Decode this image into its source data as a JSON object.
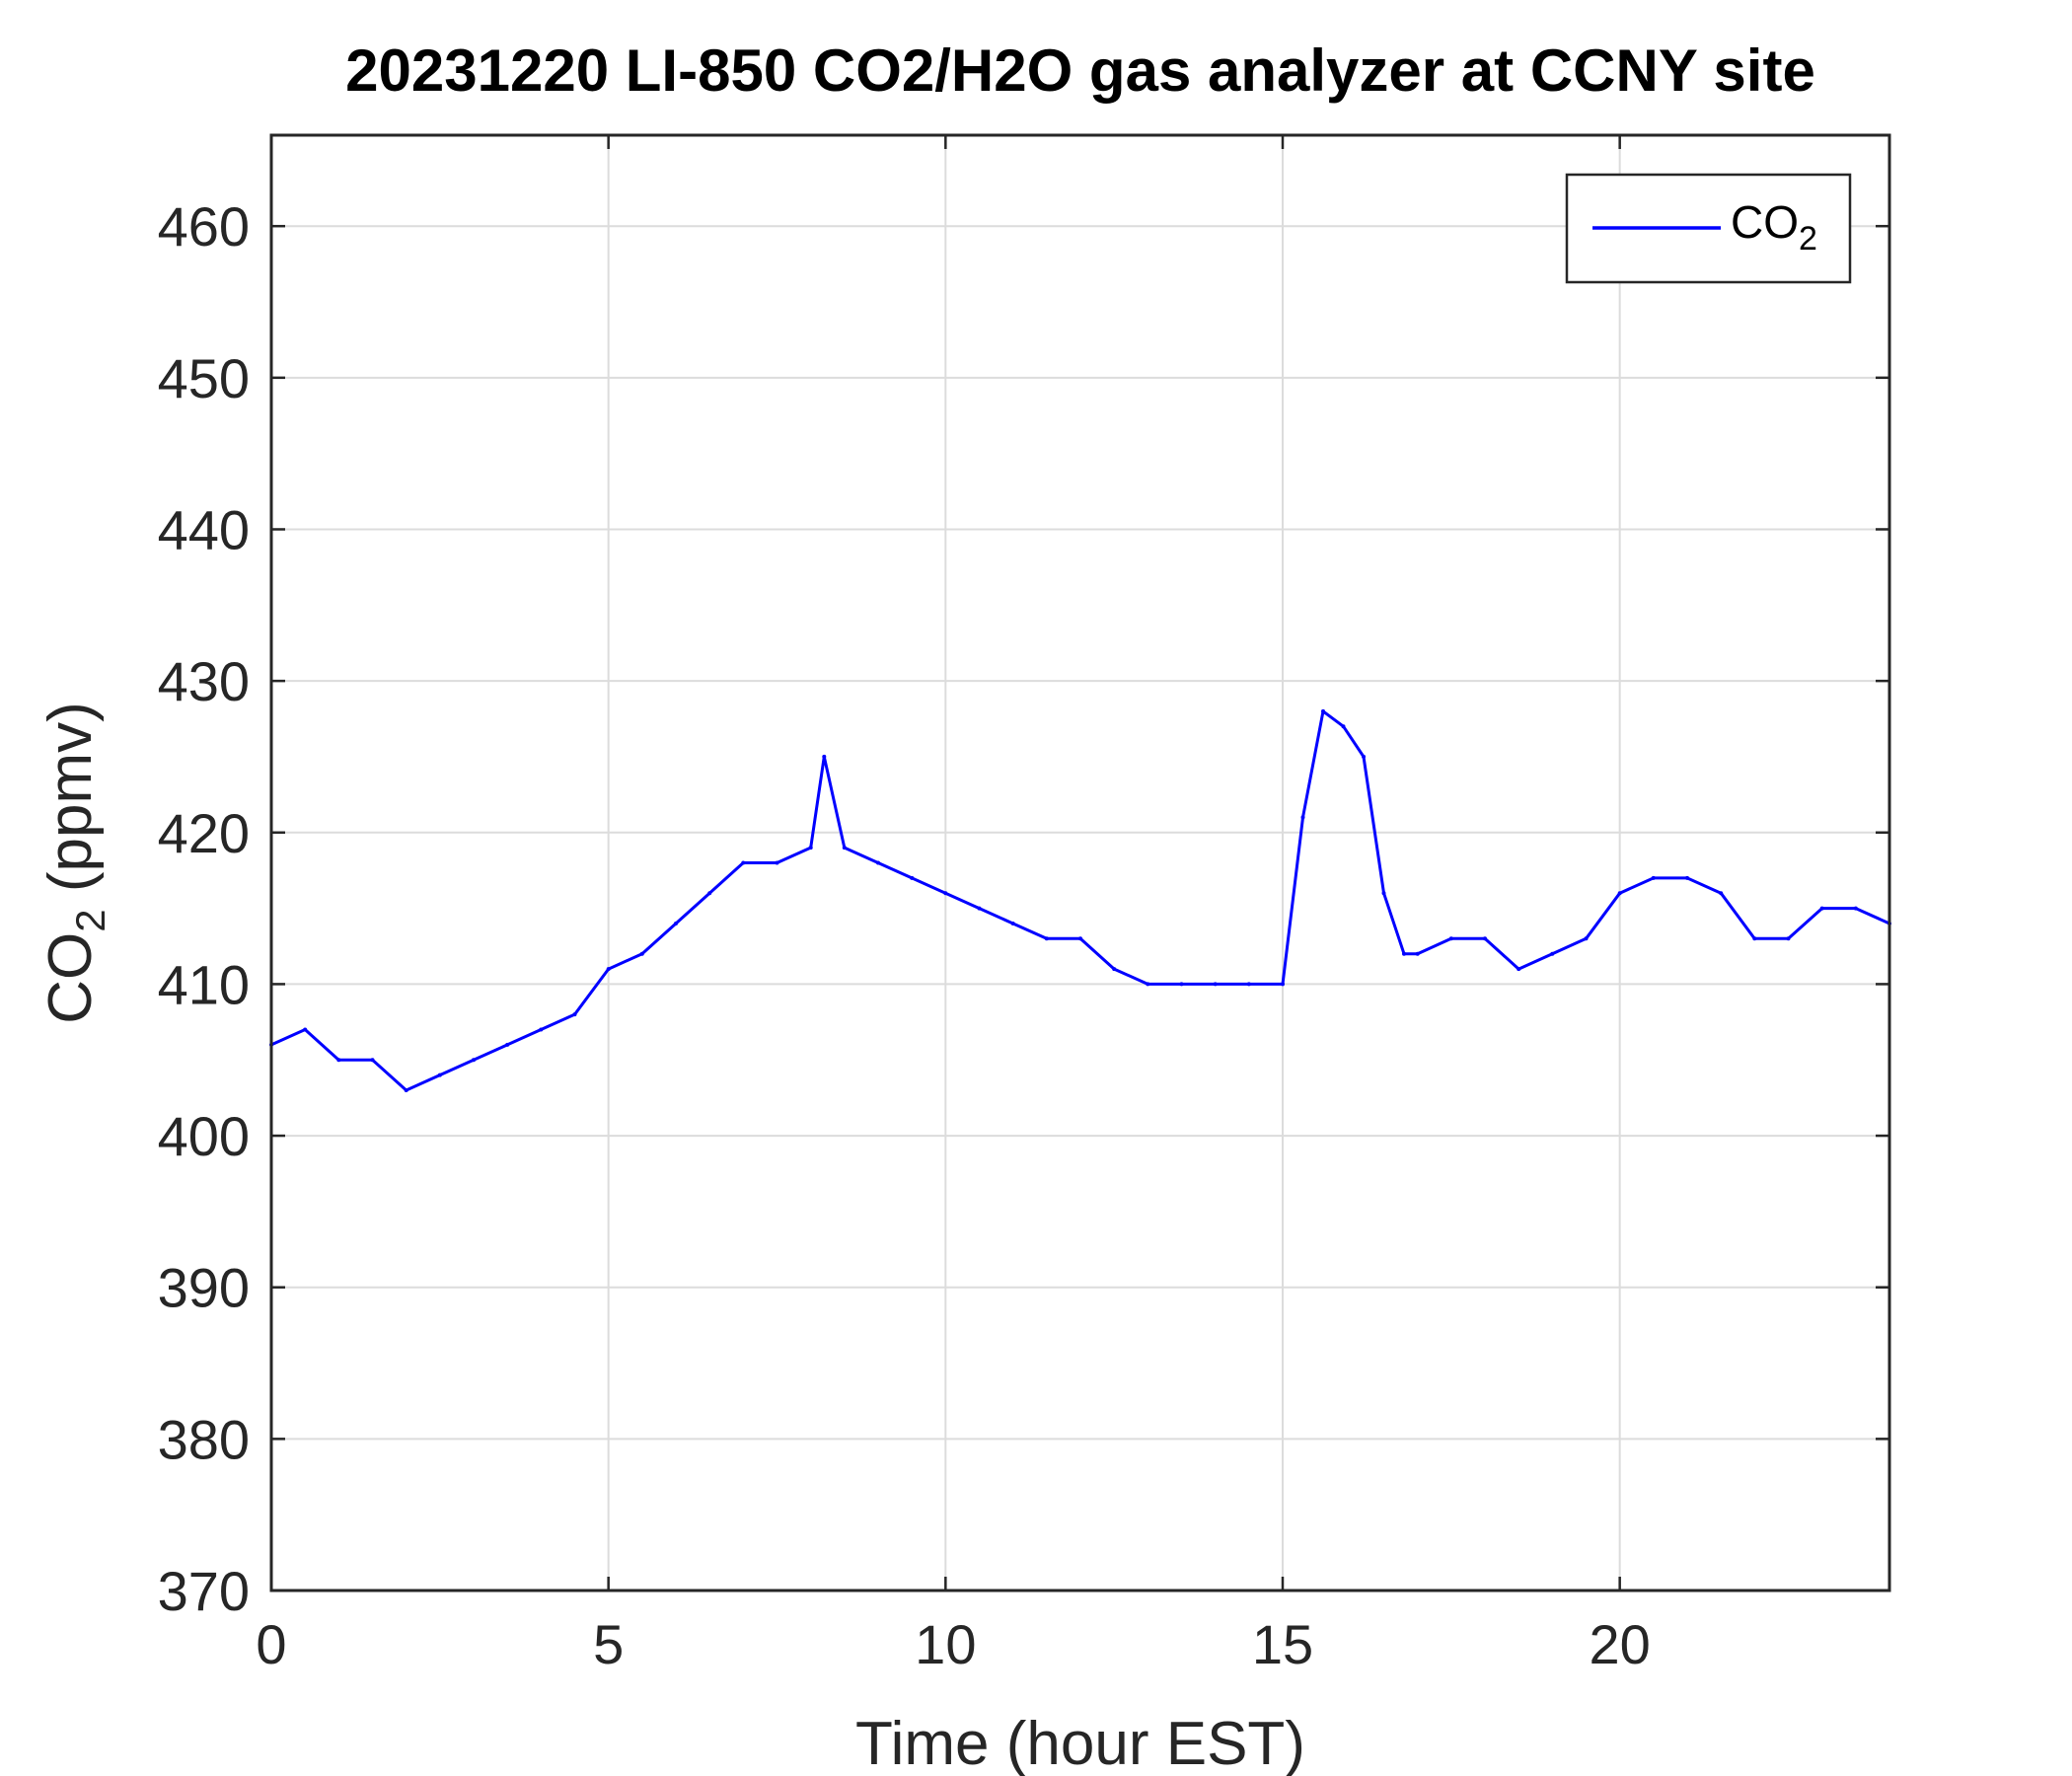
{
  "chart_data": {
    "type": "line",
    "title": "20231220 LI-850 CO2/H2O gas analyzer at CCNY site",
    "xlabel": "Time (hour EST)",
    "ylabel": {
      "main": "CO",
      "sub": "2",
      "rest": " (ppmv)"
    },
    "xlim": [
      0,
      24
    ],
    "ylim": [
      370,
      466
    ],
    "xticks": [
      0,
      5,
      10,
      15,
      20
    ],
    "yticks": [
      370,
      380,
      390,
      400,
      410,
      420,
      430,
      440,
      450,
      460
    ],
    "grid": true,
    "legend_position": "top-right",
    "series": [
      {
        "name": {
          "main": "CO",
          "sub": "2"
        },
        "color": "#0000ff",
        "x": [
          0,
          0.5,
          1,
          1.5,
          2,
          2.5,
          3,
          3.5,
          4,
          4.5,
          5,
          5.5,
          6,
          6.5,
          7,
          7.5,
          8,
          8.2,
          8.5,
          9,
          9.5,
          10,
          10.5,
          11,
          11.5,
          12,
          12.5,
          13,
          13.5,
          14,
          14.5,
          15,
          15.3,
          15.6,
          15.9,
          16.2,
          16.5,
          16.8,
          17,
          17.5,
          18,
          18.5,
          19,
          19.5,
          20,
          20.5,
          21,
          21.5,
          22,
          22.5,
          23,
          23.5,
          24
        ],
        "values": [
          406,
          407,
          405,
          405,
          403,
          404,
          405,
          406,
          407,
          408,
          411,
          412,
          414,
          416,
          418,
          418,
          419,
          425,
          419,
          418,
          417,
          416,
          415,
          414,
          413,
          413,
          411,
          410,
          410,
          410,
          410,
          410,
          421,
          428,
          427,
          425,
          416,
          412,
          412,
          413,
          413,
          411,
          412,
          413,
          416,
          417,
          417,
          416,
          413,
          413,
          415,
          415,
          414
        ]
      }
    ]
  }
}
